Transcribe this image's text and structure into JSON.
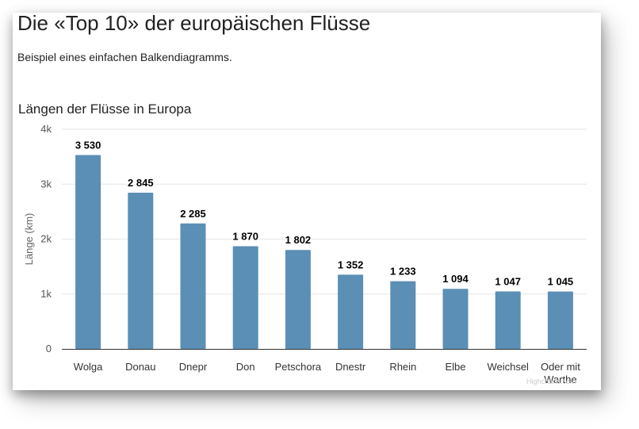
{
  "page": {
    "title": "Die «Top 10» der europäischen Flüsse",
    "subtitle": "Beispiel eines einfachen Balkendiagramms."
  },
  "chart_data": {
    "type": "bar",
    "title": "Längen der Flüsse in Europa",
    "xlabel": "",
    "ylabel": "Länge (km)",
    "categories": [
      "Wolga",
      "Donau",
      "Dnepr",
      "Don",
      "Petschora",
      "Dnestr",
      "Rhein",
      "Elbe",
      "Weichsel",
      "Oder mit Warthe"
    ],
    "values": [
      3530,
      2845,
      2285,
      1870,
      1802,
      1352,
      1233,
      1094,
      1047,
      1045
    ],
    "data_labels": [
      "3 530",
      "2 845",
      "2 285",
      "1 870",
      "1 802",
      "1 352",
      "1 233",
      "1 094",
      "1 047",
      "1 045"
    ],
    "ylim": [
      0,
      4000
    ],
    "yticks": [
      0,
      1000,
      2000,
      3000,
      4000
    ],
    "ytick_labels": [
      "0",
      "1k",
      "2k",
      "3k",
      "4k"
    ],
    "grid": true,
    "legend": "none",
    "bar_color": "#5b8fb5",
    "credits": "Highcharts.com"
  }
}
